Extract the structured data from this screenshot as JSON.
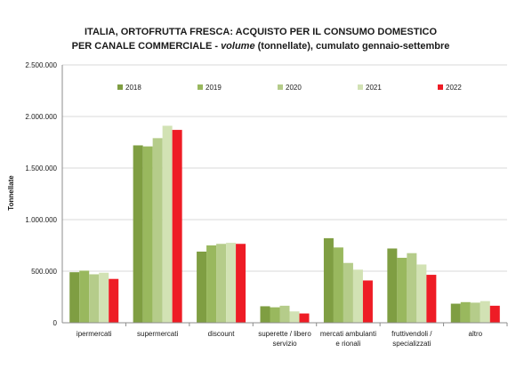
{
  "chart_data": {
    "type": "bar",
    "title_line1": "ITALIA, ORTOFRUTTA  FRESCA: ACQUISTO PER IL CONSUMO DOMESTICO",
    "title_line2_part1": "PER  CANALE COMMERCIALE - ",
    "title_line2_italic": "volume",
    "title_line2_part2": " (tonnellate), cumulato gennaio-settembre",
    "ylabel": "Tonnellate",
    "xlabel": "",
    "ylim": [
      0,
      2500000
    ],
    "yticks": [
      0,
      500000,
      1000000,
      1500000,
      2000000,
      2500000
    ],
    "ytick_labels": [
      "0",
      "500.000",
      "1.000.000",
      "1.500.000",
      "2.000.000",
      "2.500.000"
    ],
    "grid": true,
    "legend_position": "top",
    "categories": [
      [
        "ipermercati"
      ],
      [
        "supermercati"
      ],
      [
        "discount"
      ],
      [
        "superette / libero",
        "servizio"
      ],
      [
        "mercati ambulanti",
        "e rionali"
      ],
      [
        "fruttivendoli /",
        "specializzati"
      ],
      [
        "altro"
      ]
    ],
    "series": [
      {
        "name": "2018",
        "color": "#7f9e42",
        "values": [
          490000,
          1720000,
          690000,
          160000,
          820000,
          720000,
          185000
        ]
      },
      {
        "name": "2019",
        "color": "#99b85e",
        "values": [
          505000,
          1710000,
          750000,
          150000,
          730000,
          630000,
          200000
        ]
      },
      {
        "name": "2020",
        "color": "#b5cc8a",
        "values": [
          470000,
          1790000,
          765000,
          165000,
          580000,
          675000,
          195000
        ]
      },
      {
        "name": "2021",
        "color": "#d2e2b4",
        "values": [
          485000,
          1910000,
          775000,
          110000,
          515000,
          565000,
          210000
        ]
      },
      {
        "name": "2022",
        "color": "#ee1c25",
        "values": [
          425000,
          1870000,
          765000,
          90000,
          410000,
          465000,
          165000
        ]
      }
    ]
  }
}
